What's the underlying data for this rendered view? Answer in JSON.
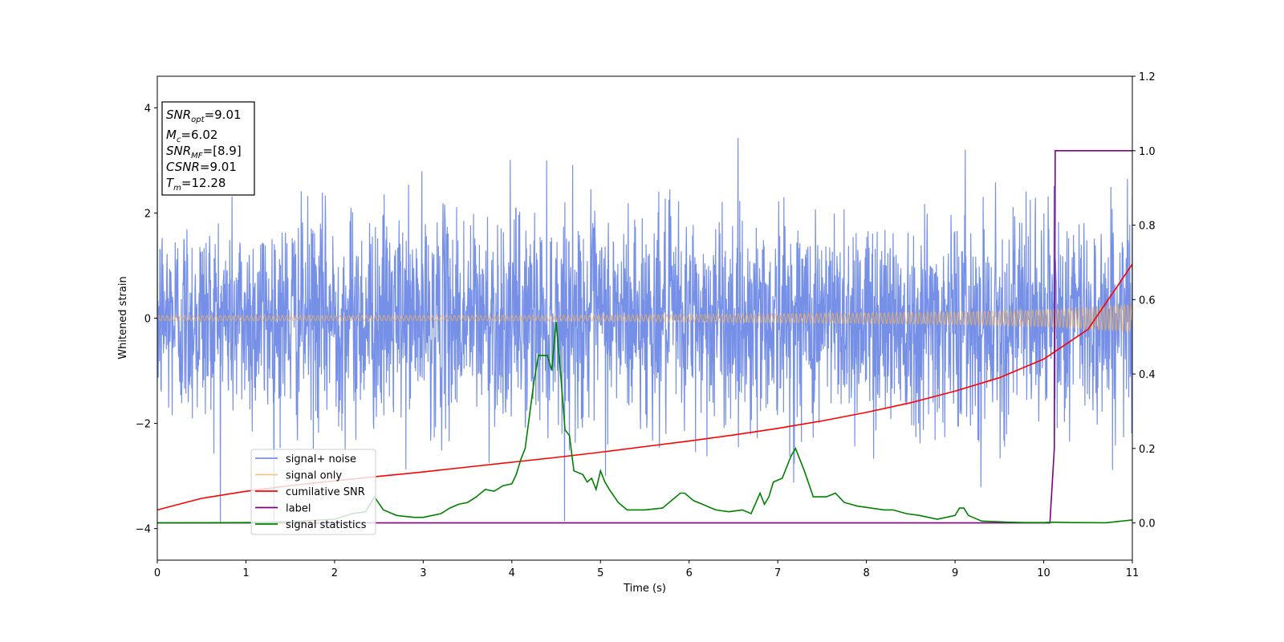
{
  "chart_data": {
    "type": "line",
    "xlabel": "Time (s)",
    "ylabel": "Whitened strain",
    "xlim": [
      0,
      11
    ],
    "ylim": [
      -4.6,
      4.6
    ],
    "y2lim": [
      -0.1,
      1.2
    ],
    "xticks": [
      "0",
      "1",
      "2",
      "3",
      "4",
      "5",
      "6",
      "7",
      "8",
      "9",
      "10",
      "11"
    ],
    "yticks": [
      "4",
      "2",
      "0",
      "−2",
      "−4"
    ],
    "y2ticks": [
      "1.2",
      "1.0",
      "0.8",
      "0.6",
      "0.4",
      "0.2",
      "0.0"
    ],
    "legend_position": "lower-left",
    "annotation": {
      "snr_opt": {
        "base": "SNR",
        "sub": "opt",
        "value": "=9.01"
      },
      "mc": {
        "base": "M",
        "sub": "c",
        "value": "=6.02"
      },
      "snr_mf": {
        "base": "SNR",
        "sub": "MF",
        "value": "=[8.9]"
      },
      "csnr": {
        "base": "CSNR",
        "sub": "",
        "value": "=9.01"
      },
      "tm": {
        "base": "T",
        "sub": "m",
        "value": "=12.28"
      }
    },
    "series": [
      {
        "name": "signal+ noise",
        "axis": "left",
        "color": "#6f8ae6",
        "envelope": {
          "upper_typical": 2.1,
          "upper_spikes": 3.8,
          "lower_typical": -2.1,
          "lower_spikes": -3.9
        }
      },
      {
        "name": "signal only",
        "axis": "left",
        "color": "#f5b35a",
        "envelope": {
          "x": [
            0,
            4,
            6,
            8,
            9,
            10,
            10.5,
            11
          ],
          "amp": [
            0.05,
            0.05,
            0.07,
            0.1,
            0.12,
            0.16,
            0.2,
            0.26
          ]
        }
      },
      {
        "name": "cumilative SNR",
        "axis": "right",
        "color": "#ff0000",
        "x": [
          0,
          0.5,
          1,
          1.5,
          2,
          2.5,
          3,
          3.5,
          4,
          4.5,
          5,
          5.5,
          6,
          6.5,
          7,
          7.5,
          8,
          8.5,
          9,
          9.5,
          10,
          10.5,
          11
        ],
        "y": [
          0.035,
          0.066,
          0.085,
          0.1,
          0.113,
          0.125,
          0.137,
          0.15,
          0.163,
          0.176,
          0.19,
          0.205,
          0.22,
          0.236,
          0.254,
          0.274,
          0.297,
          0.323,
          0.354,
          0.39,
          0.44,
          0.52,
          0.695
        ]
      },
      {
        "name": "label",
        "axis": "right",
        "color": "#800080",
        "x": [
          0,
          10.07,
          10.12,
          10.13,
          11
        ],
        "y": [
          0,
          0,
          0.2,
          1.0,
          1.0
        ]
      },
      {
        "name": "signal statistics",
        "axis": "right",
        "color": "#008000",
        "x": [
          0,
          0.5,
          1,
          1.5,
          2,
          2.2,
          2.35,
          2.45,
          2.55,
          2.7,
          2.9,
          3.0,
          3.2,
          3.3,
          3.4,
          3.5,
          3.6,
          3.7,
          3.8,
          3.9,
          4.0,
          4.05,
          4.1,
          4.15,
          4.2,
          4.25,
          4.3,
          4.4,
          4.45,
          4.5,
          4.55,
          4.6,
          4.65,
          4.7,
          4.8,
          4.85,
          4.9,
          4.95,
          5.0,
          5.05,
          5.1,
          5.2,
          5.3,
          5.5,
          5.7,
          5.9,
          5.95,
          6.05,
          6.15,
          6.3,
          6.45,
          6.6,
          6.7,
          6.8,
          6.85,
          6.9,
          6.95,
          7.05,
          7.15,
          7.2,
          7.3,
          7.4,
          7.55,
          7.65,
          7.75,
          7.9,
          8.2,
          8.3,
          8.45,
          8.6,
          8.8,
          9.0,
          9.05,
          9.1,
          9.15,
          9.3,
          9.6,
          9.8,
          10.0,
          10.1,
          10.3,
          10.7,
          11
        ],
        "y": [
          0,
          0.0005,
          0.001,
          0.003,
          0.01,
          0.025,
          0.03,
          0.07,
          0.035,
          0.02,
          0.015,
          0.015,
          0.025,
          0.04,
          0.05,
          0.055,
          0.07,
          0.09,
          0.085,
          0.1,
          0.105,
          0.13,
          0.17,
          0.2,
          0.29,
          0.38,
          0.45,
          0.45,
          0.41,
          0.54,
          0.4,
          0.25,
          0.235,
          0.14,
          0.13,
          0.11,
          0.12,
          0.09,
          0.14,
          0.11,
          0.09,
          0.055,
          0.035,
          0.035,
          0.04,
          0.08,
          0.08,
          0.06,
          0.05,
          0.035,
          0.03,
          0.035,
          0.025,
          0.08,
          0.05,
          0.07,
          0.11,
          0.12,
          0.18,
          0.2,
          0.14,
          0.07,
          0.07,
          0.08,
          0.055,
          0.045,
          0.035,
          0.035,
          0.025,
          0.02,
          0.01,
          0.02,
          0.04,
          0.04,
          0.02,
          0.005,
          0.002,
          0.001,
          0.001,
          0.002,
          0.001,
          0.0005,
          0.008
        ]
      }
    ]
  }
}
